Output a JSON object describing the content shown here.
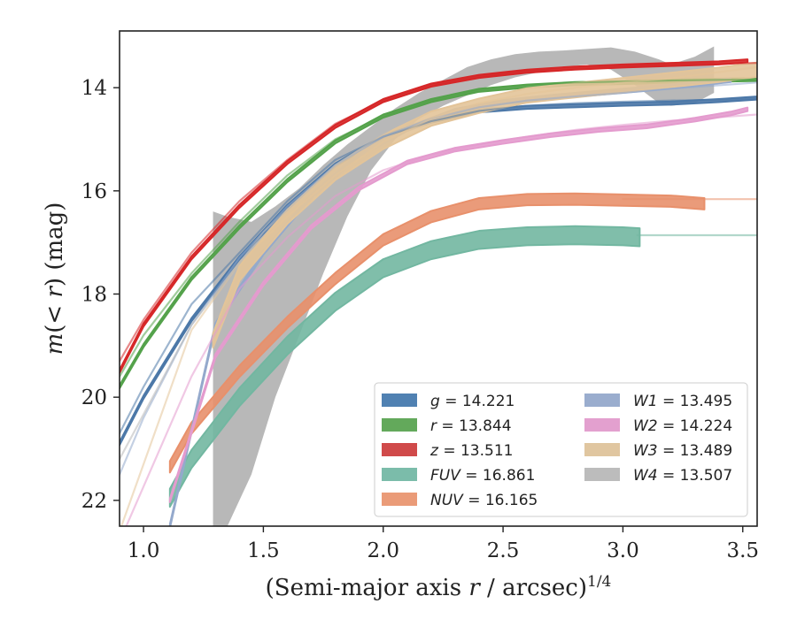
{
  "chart_data": {
    "type": "line",
    "xlabel": "(Semi-major axis r / arcsec)^1/4",
    "ylabel": "m(<r) (mag)",
    "xlim": [
      0.9,
      3.56
    ],
    "ylim": [
      22.5,
      12.9
    ],
    "y_inverted": true,
    "xticks": [
      "1.0",
      "1.5",
      "2.0",
      "2.5",
      "3.0",
      "3.5"
    ],
    "xtick_values": [
      1.0,
      1.5,
      2.0,
      2.5,
      3.0,
      3.5
    ],
    "yticks": [
      "14",
      "16",
      "18",
      "20",
      "22"
    ],
    "ytick_values": [
      14,
      16,
      18,
      20,
      22
    ],
    "grid": false,
    "legend_position": "lower-right",
    "legend_columns": 2,
    "series": [
      {
        "name": "g",
        "total": "14.221",
        "color": "#4c78a8",
        "model_x": [
          0.9,
          1.0,
          1.2,
          1.4,
          1.6,
          1.8,
          2.0,
          2.2,
          2.4,
          2.6,
          2.8,
          3.0,
          3.2,
          3.56
        ],
        "model_y": [
          20.7,
          19.8,
          18.2,
          17.2,
          16.2,
          15.4,
          14.95,
          14.65,
          14.45,
          14.35,
          14.3,
          14.27,
          14.25,
          14.22
        ],
        "band_x": [
          0.9,
          1.0,
          1.2,
          1.4,
          1.6,
          1.8,
          2.0,
          2.2,
          2.4,
          2.6,
          2.8,
          3.0,
          3.2,
          3.4,
          3.56
        ],
        "band_y": [
          20.9,
          20.0,
          18.5,
          17.3,
          16.3,
          15.5,
          14.95,
          14.65,
          14.45,
          14.38,
          14.35,
          14.32,
          14.3,
          14.25,
          14.2
        ],
        "band_width": 0.06
      },
      {
        "name": "r",
        "total": "13.844",
        "color": "#54a24b",
        "model_x": [
          0.9,
          1.0,
          1.2,
          1.4,
          1.6,
          1.8,
          2.0,
          2.2,
          2.4,
          2.6,
          2.8,
          3.0,
          3.2,
          3.56
        ],
        "model_y": [
          19.6,
          18.8,
          17.6,
          16.6,
          15.7,
          15.0,
          14.55,
          14.25,
          14.05,
          13.95,
          13.9,
          13.88,
          13.86,
          13.84
        ],
        "band_x": [
          0.9,
          1.0,
          1.2,
          1.4,
          1.6,
          1.8,
          2.0,
          2.2,
          2.4,
          2.6,
          2.8,
          3.0,
          3.2,
          3.56
        ],
        "band_y": [
          19.8,
          19.0,
          17.7,
          16.7,
          15.8,
          15.05,
          14.55,
          14.25,
          14.05,
          13.97,
          13.92,
          13.9,
          13.87,
          13.84
        ],
        "band_width": 0.06
      },
      {
        "name": "z",
        "total": "13.511",
        "color": "#d62728",
        "model_x": [
          0.9,
          1.0,
          1.2,
          1.4,
          1.6,
          1.8,
          2.0,
          2.2,
          2.4,
          2.6,
          2.8,
          3.0,
          3.2,
          3.56
        ],
        "model_y": [
          19.3,
          18.5,
          17.2,
          16.2,
          15.4,
          14.7,
          14.25,
          13.95,
          13.78,
          13.68,
          13.62,
          13.58,
          13.55,
          13.52
        ],
        "band_x": [
          0.9,
          1.0,
          1.2,
          1.4,
          1.6,
          1.8,
          2.0,
          2.2,
          2.4,
          2.6,
          2.8,
          3.0,
          3.2,
          3.4,
          3.52
        ],
        "band_y": [
          19.5,
          18.6,
          17.3,
          16.3,
          15.45,
          14.75,
          14.25,
          13.95,
          13.78,
          13.68,
          13.62,
          13.58,
          13.55,
          13.52,
          13.48
        ],
        "band_width": 0.06
      },
      {
        "name": "FUV",
        "total": "16.861",
        "color": "#72b7a1",
        "model_x": [
          3.06,
          3.56
        ],
        "model_y": [
          16.86,
          16.86
        ],
        "band_x": [
          1.11,
          1.2,
          1.4,
          1.6,
          1.8,
          2.0,
          2.2,
          2.4,
          2.6,
          2.8,
          3.0,
          3.07
        ],
        "band_y": [
          21.95,
          21.2,
          20.0,
          19.0,
          18.15,
          17.5,
          17.15,
          16.95,
          16.88,
          16.86,
          16.88,
          16.9
        ],
        "band_width": 0.35
      },
      {
        "name": "NUV",
        "total": "16.165",
        "color": "#e8906b",
        "model_x": [
          3.0,
          3.56
        ],
        "model_y": [
          16.16,
          16.16
        ],
        "band_x": [
          1.11,
          1.2,
          1.4,
          1.6,
          1.8,
          2.0,
          2.2,
          2.4,
          2.6,
          2.8,
          3.0,
          3.2,
          3.34
        ],
        "band_y": [
          21.35,
          20.6,
          19.5,
          18.55,
          17.7,
          16.95,
          16.5,
          16.25,
          16.17,
          16.16,
          16.18,
          16.2,
          16.25
        ],
        "band_width": 0.22
      },
      {
        "name": "W1",
        "total": "13.495",
        "color": "#94a9cc",
        "model_x": [
          0.9,
          1.0,
          1.2,
          1.4,
          1.6,
          1.8,
          2.0,
          2.2,
          2.4,
          2.6,
          2.8,
          3.0,
          3.2,
          3.56
        ],
        "model_y": [
          21.5,
          20.4,
          18.6,
          17.3,
          16.3,
          15.5,
          14.95,
          14.6,
          14.38,
          14.25,
          14.17,
          14.1,
          14.02,
          13.9
        ],
        "band_x": [
          1.11,
          1.3,
          1.5,
          1.7,
          1.9,
          2.1,
          2.3,
          2.5,
          2.7,
          2.9,
          3.1,
          3.3,
          3.45
        ],
        "band_y": [
          22.5,
          18.6,
          17.2,
          16.1,
          15.3,
          14.8,
          14.45,
          14.28,
          14.18,
          14.1,
          14.02,
          13.93,
          13.85
        ],
        "band_width": 0.08
      },
      {
        "name": "W2",
        "total": "14.224",
        "color": "#e49bce",
        "model_x": [
          0.9,
          1.2,
          1.4,
          1.6,
          1.8,
          2.0,
          2.2,
          2.4,
          2.6,
          2.8,
          3.0,
          3.2,
          3.56
        ],
        "model_y": [
          22.8,
          19.6,
          17.9,
          16.9,
          16.1,
          15.6,
          15.3,
          15.1,
          14.95,
          14.82,
          14.72,
          14.64,
          14.52
        ],
        "band_x": [
          1.11,
          1.3,
          1.5,
          1.7,
          1.9,
          2.1,
          2.3,
          2.5,
          2.7,
          2.9,
          3.1,
          3.3,
          3.45,
          3.52
        ],
        "band_y": [
          22.0,
          19.2,
          17.8,
          16.7,
          15.95,
          15.45,
          15.2,
          15.05,
          14.92,
          14.82,
          14.75,
          14.62,
          14.5,
          14.42
        ],
        "band_width": 0.07
      },
      {
        "name": "W3",
        "total": "13.489",
        "color": "#e3c499",
        "model_x": [
          0.9,
          1.2,
          1.4,
          1.6,
          1.8,
          2.0,
          2.2,
          2.4,
          2.6,
          2.8,
          3.0,
          3.2,
          3.56
        ],
        "model_y": [
          22.6,
          18.7,
          17.4,
          16.5,
          15.7,
          15.05,
          14.6,
          14.3,
          14.12,
          14.0,
          13.9,
          13.82,
          13.6
        ],
        "band_x": [
          1.29,
          1.4,
          1.6,
          1.8,
          2.0,
          2.2,
          2.4,
          2.6,
          2.8,
          3.0,
          3.2,
          3.4,
          3.56
        ],
        "band_y": [
          18.9,
          17.6,
          16.5,
          15.65,
          15.05,
          14.6,
          14.35,
          14.15,
          14.05,
          13.95,
          13.85,
          13.75,
          13.65
        ],
        "band_width": 0.28
      },
      {
        "name": "W4",
        "total": "13.507",
        "color": "#b8b8b8",
        "model_x": [
          0.9,
          1.2,
          1.5,
          1.8,
          2.1
        ],
        "model_y": [
          21.2,
          18.6,
          16.8,
          15.5,
          14.6
        ],
        "band_x": [
          1.29,
          1.35,
          1.45,
          1.55,
          1.65,
          1.75,
          1.85,
          1.95,
          2.05,
          2.15,
          2.25,
          2.35,
          2.45,
          2.55,
          2.65,
          2.75,
          2.85,
          2.95,
          3.05,
          3.15,
          3.2,
          3.3,
          3.38
        ],
        "band_upper": [
          16.4,
          16.5,
          16.6,
          16.3,
          15.95,
          15.5,
          15.1,
          14.75,
          14.4,
          14.1,
          13.85,
          13.6,
          13.45,
          13.35,
          13.3,
          13.28,
          13.25,
          13.22,
          13.3,
          13.45,
          13.55,
          13.4,
          13.2
        ],
        "band_lower": [
          22.5,
          22.5,
          21.5,
          20.0,
          18.8,
          17.6,
          16.5,
          15.6,
          15.0,
          14.6,
          14.35,
          14.15,
          13.95,
          13.8,
          13.7,
          13.6,
          13.55,
          13.65,
          13.95,
          14.3,
          14.35,
          14.3,
          14.1
        ]
      }
    ],
    "legend": [
      {
        "label": "g = 14.221",
        "var": "g",
        "value": "14.221",
        "color": "#5081b2"
      },
      {
        "label": "r = 13.844",
        "var": "r",
        "value": "13.844",
        "color": "#63a95b"
      },
      {
        "label": "z = 13.511",
        "var": "z",
        "value": "13.511",
        "color": "#d04a4a"
      },
      {
        "label": "FUV = 16.861",
        "var": "FUV",
        "value": "16.861",
        "color": "#7bbcaa"
      },
      {
        "label": "NUV = 16.165",
        "var": "NUV",
        "value": "16.165",
        "color": "#ea9b78"
      },
      {
        "label": "W1 = 13.495",
        "var": "W1",
        "value": "13.495",
        "color": "#9aadce"
      },
      {
        "label": "W2 = 14.224",
        "var": "W2",
        "value": "14.224",
        "color": "#e3a0cf"
      },
      {
        "label": "W3 = 13.489",
        "var": "W3",
        "value": "13.489",
        "color": "#e0c6a0"
      },
      {
        "label": "W4 = 13.507",
        "var": "W4",
        "value": "13.507",
        "color": "#bcbcbc"
      }
    ]
  }
}
